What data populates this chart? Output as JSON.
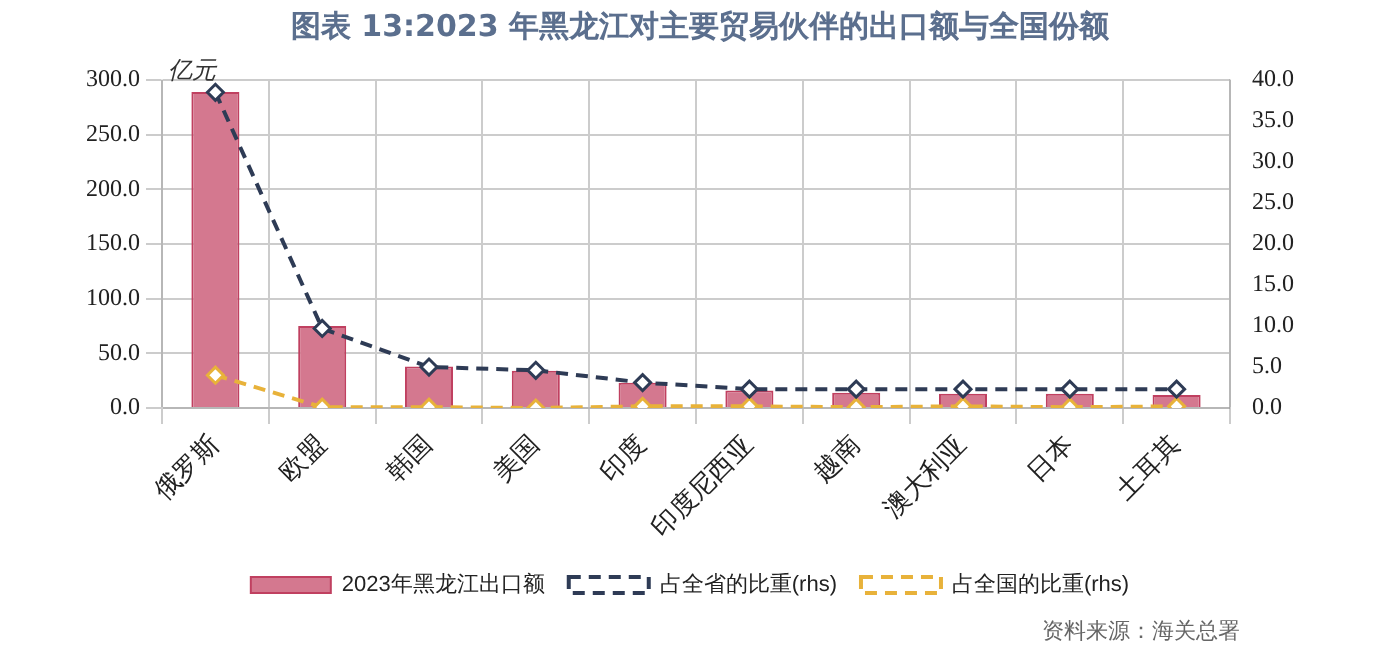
{
  "chart_data": {
    "type": "bar",
    "title": "图表 13:2023 年黑龙江对主要贸易伙伴的出口额与全国份额",
    "ylabel": "亿元",
    "categories": [
      "俄罗斯",
      "欧盟",
      "韩国",
      "美国",
      "印度",
      "印度尼西亚",
      "越南",
      "澳大利亚",
      "日本",
      "土耳其"
    ],
    "series": [
      {
        "name": "2023年黑龙江出口额",
        "color": "#d4788f",
        "values": [
          289,
          75,
          38,
          34,
          23,
          16,
          14,
          13,
          13,
          12
        ]
      },
      {
        "name": "占全省的比重(rhs)",
        "type": "line",
        "axis": "y2",
        "color": "#2e3b55",
        "line_style": "dashed",
        "marker": "diamond",
        "values": [
          38.5,
          9.7,
          5.0,
          4.6,
          3.1,
          2.3,
          2.3,
          2.3,
          2.3,
          2.3
        ]
      },
      {
        "name": "占全国的比重(rhs)",
        "type": "line",
        "axis": "y2",
        "color": "#e8b23a",
        "line_style": "dashed",
        "marker": "diamond",
        "values": [
          4.0,
          0.1,
          0.1,
          0.0,
          0.2,
          0.2,
          0.1,
          0.2,
          0.1,
          0.2
        ]
      }
    ],
    "ylim": [
      0,
      300
    ],
    "yticks": [
      {
        "value": 0,
        "label": "0.0"
      },
      {
        "value": 50,
        "label": "50.0"
      },
      {
        "value": 100,
        "label": "100.0"
      },
      {
        "value": 150,
        "label": "150.0"
      },
      {
        "value": 200,
        "label": "200.0"
      },
      {
        "value": 250,
        "label": "250.0"
      },
      {
        "value": 300,
        "label": "300.0"
      }
    ],
    "y2lim": [
      0,
      40
    ],
    "y2ticks": [
      {
        "value": 0,
        "label": "0.0"
      },
      {
        "value": 5,
        "label": "5.0"
      },
      {
        "value": 10,
        "label": "10.0"
      },
      {
        "value": 15,
        "label": "15.0"
      },
      {
        "value": 20,
        "label": "20.0"
      },
      {
        "value": 25,
        "label": "25.0"
      },
      {
        "value": 30,
        "label": "30.0"
      },
      {
        "value": 35,
        "label": "35.0"
      },
      {
        "value": 40,
        "label": "40.0"
      }
    ],
    "grid": true,
    "legend": "bottom",
    "annotations": [
      "资料来源：海关总署"
    ]
  }
}
